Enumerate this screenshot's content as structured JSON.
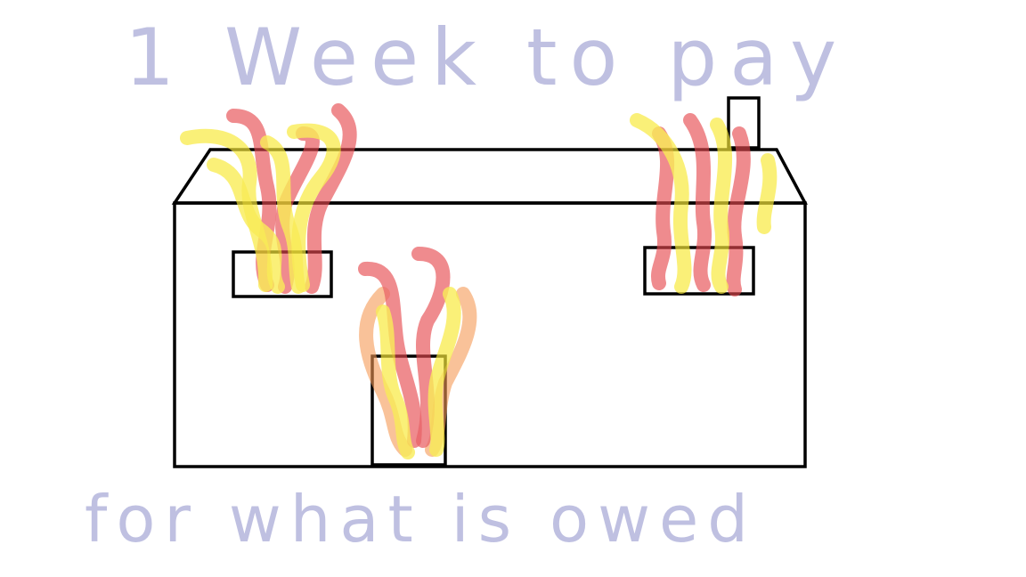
{
  "caption": {
    "top": "1  Week to  pay",
    "bottom": "for  what  is owed"
  },
  "colors": {
    "ink": "#b4b6dc",
    "outline": "#000000",
    "flame_red": "#e64a4f",
    "flame_yellow": "#f7e83a",
    "flame_orange": "#f59a55",
    "background": "#ffffff"
  },
  "drawing": {
    "subject": "house-on-fire",
    "flame_sites": [
      "left-window",
      "door",
      "right-window"
    ]
  }
}
